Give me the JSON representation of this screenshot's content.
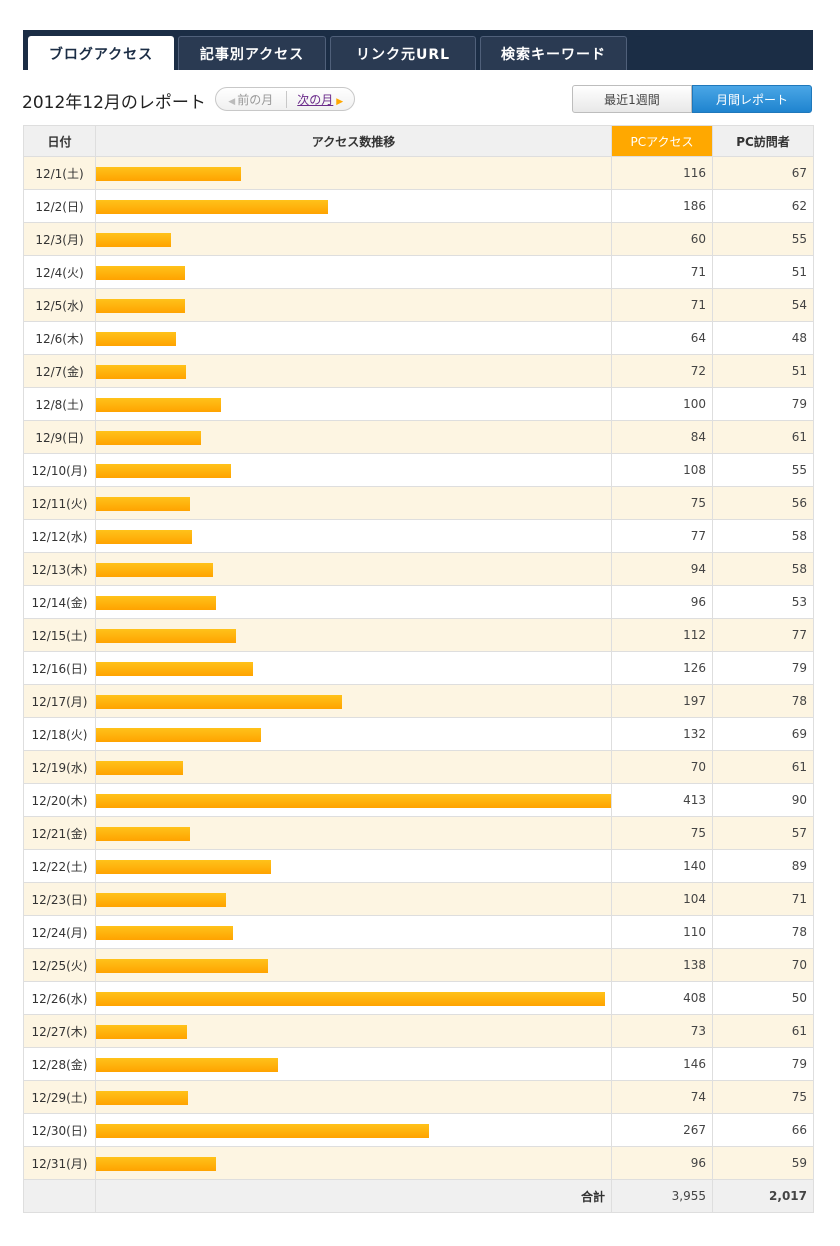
{
  "tabs": [
    {
      "label": "ブログアクセス",
      "active": true
    },
    {
      "label": "記事別アクセス",
      "active": false
    },
    {
      "label": "リンク元URL",
      "active": false
    },
    {
      "label": "検索キーワード",
      "active": false
    }
  ],
  "report": {
    "title": "2012年12月のレポート",
    "prev_month": "前の月",
    "next_month": "次の月",
    "period_week": "最近1週間",
    "period_month": "月間レポート"
  },
  "table": {
    "headers": {
      "date": "日付",
      "trend": "アクセス数推移",
      "pc_access": "PCアクセス",
      "pc_visitors": "PC訪問者"
    },
    "rows": [
      {
        "date": "12/1(土)",
        "access": 116,
        "visitors": 67
      },
      {
        "date": "12/2(日)",
        "access": 186,
        "visitors": 62
      },
      {
        "date": "12/3(月)",
        "access": 60,
        "visitors": 55
      },
      {
        "date": "12/4(火)",
        "access": 71,
        "visitors": 51
      },
      {
        "date": "12/5(水)",
        "access": 71,
        "visitors": 54
      },
      {
        "date": "12/6(木)",
        "access": 64,
        "visitors": 48
      },
      {
        "date": "12/7(金)",
        "access": 72,
        "visitors": 51
      },
      {
        "date": "12/8(土)",
        "access": 100,
        "visitors": 79
      },
      {
        "date": "12/9(日)",
        "access": 84,
        "visitors": 61
      },
      {
        "date": "12/10(月)",
        "access": 108,
        "visitors": 55
      },
      {
        "date": "12/11(火)",
        "access": 75,
        "visitors": 56
      },
      {
        "date": "12/12(水)",
        "access": 77,
        "visitors": 58
      },
      {
        "date": "12/13(木)",
        "access": 94,
        "visitors": 58
      },
      {
        "date": "12/14(金)",
        "access": 96,
        "visitors": 53
      },
      {
        "date": "12/15(土)",
        "access": 112,
        "visitors": 77
      },
      {
        "date": "12/16(日)",
        "access": 126,
        "visitors": 79
      },
      {
        "date": "12/17(月)",
        "access": 197,
        "visitors": 78
      },
      {
        "date": "12/18(火)",
        "access": 132,
        "visitors": 69
      },
      {
        "date": "12/19(水)",
        "access": 70,
        "visitors": 61
      },
      {
        "date": "12/20(木)",
        "access": 413,
        "visitors": 90
      },
      {
        "date": "12/21(金)",
        "access": 75,
        "visitors": 57
      },
      {
        "date": "12/22(土)",
        "access": 140,
        "visitors": 89
      },
      {
        "date": "12/23(日)",
        "access": 104,
        "visitors": 71
      },
      {
        "date": "12/24(月)",
        "access": 110,
        "visitors": 78
      },
      {
        "date": "12/25(火)",
        "access": 138,
        "visitors": 70
      },
      {
        "date": "12/26(水)",
        "access": 408,
        "visitors": 50
      },
      {
        "date": "12/27(木)",
        "access": 73,
        "visitors": 61
      },
      {
        "date": "12/28(金)",
        "access": 146,
        "visitors": 79
      },
      {
        "date": "12/29(土)",
        "access": 74,
        "visitors": 75
      },
      {
        "date": "12/30(日)",
        "access": 267,
        "visitors": 66
      },
      {
        "date": "12/31(月)",
        "access": 96,
        "visitors": 59
      }
    ],
    "total": {
      "label": "合計",
      "access": "3,955",
      "visitors": "2,017"
    }
  },
  "colors": {
    "bar": "#ffa800",
    "tabbar": "#1b2d45",
    "active_header": "#ffa800",
    "month_button": "#1f84cf"
  },
  "icons": {
    "prev": "triangle-left-icon",
    "next": "triangle-right-icon"
  }
}
